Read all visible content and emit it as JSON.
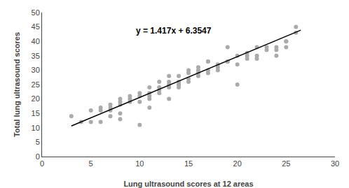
{
  "chart_data": {
    "type": "scatter",
    "xlabel": "Lung ultrasound scores at 12 areas",
    "ylabel": "Total lung ultrasound scores",
    "series": [
      {
        "type": "scatter",
        "marker": "circle",
        "color": "#aaaaaa",
        "x": [
          3,
          4,
          5,
          5,
          6,
          6,
          6,
          7,
          7,
          7,
          7,
          8,
          8,
          8,
          8,
          8,
          9,
          9,
          9,
          10,
          10,
          10,
          10,
          11,
          11,
          11,
          11,
          11,
          12,
          12,
          12,
          12,
          13,
          13,
          13,
          13,
          13,
          14,
          14,
          14,
          14,
          14,
          15,
          15,
          15,
          15,
          16,
          16,
          16,
          16,
          17,
          17,
          17,
          17,
          18,
          18,
          18,
          19,
          19,
          19,
          20,
          20,
          20,
          21,
          21,
          21,
          22,
          22,
          22,
          23,
          23,
          24,
          24,
          24,
          25,
          25,
          25,
          26,
          26
        ],
        "values": [
          14,
          12,
          12,
          16,
          17,
          16,
          12,
          18,
          17,
          14,
          16,
          18,
          19,
          20,
          15,
          13,
          20,
          19,
          21,
          21,
          22,
          19,
          11,
          22,
          21,
          20,
          24,
          17,
          23,
          24,
          22,
          26,
          24,
          25,
          26,
          28,
          20,
          25,
          25,
          28,
          24,
          26,
          27,
          26,
          30,
          29,
          29,
          30,
          31,
          28,
          30,
          29,
          33,
          33,
          30,
          32,
          31,
          33,
          33,
          38,
          32,
          35,
          25,
          35,
          36,
          34,
          35,
          34,
          38,
          37,
          38,
          37,
          38,
          35,
          38,
          40,
          40,
          43,
          45
        ]
      },
      {
        "type": "line",
        "line_style": "solid",
        "color": "#000000",
        "x": [
          3.0,
          26.5
        ],
        "values": [
          10.6057,
          43.9052
        ]
      }
    ],
    "annotations": [
      {
        "text": "y = 1.417x + 6.3547",
        "x": 9.5,
        "y": 41.5
      }
    ],
    "xlim": [
      0,
      30
    ],
    "ylim": [
      0,
      50
    ],
    "xticks": [
      0,
      5,
      10,
      15,
      20,
      25,
      30
    ],
    "yticks": [
      0,
      5,
      10,
      15,
      20,
      25,
      30,
      35,
      40,
      45,
      50
    ],
    "grid": false
  }
}
